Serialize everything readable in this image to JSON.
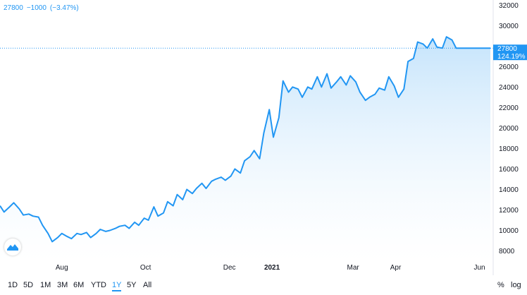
{
  "header": {
    "price": "27800",
    "change": "−1000",
    "change_pct": "(−3.47%)"
  },
  "price_tag": {
    "value": "27800",
    "pct": "124.19%"
  },
  "range_buttons": [
    {
      "label": "1D",
      "active": false
    },
    {
      "label": "5D",
      "active": false
    },
    {
      "label": "1M",
      "active": false
    },
    {
      "label": "3M",
      "active": false
    },
    {
      "label": "6M",
      "active": false
    },
    {
      "label": "YTD",
      "active": false
    },
    {
      "label": "1Y",
      "active": true
    },
    {
      "label": "5Y",
      "active": false
    },
    {
      "label": "All",
      "active": false
    }
  ],
  "axis_options": {
    "percent": "%",
    "log": "log"
  },
  "colors": {
    "line": "#2196f3",
    "fill_top": "#bfe1fb",
    "fill_bottom": "#ffffff",
    "tag_bg": "#2196f3"
  },
  "chart_data": {
    "type": "area",
    "title": "",
    "xlabel": "",
    "ylabel": "",
    "ylim": [
      7000,
      32500
    ],
    "yticks": [
      8000,
      10000,
      12000,
      14000,
      16000,
      18000,
      20000,
      22000,
      24000,
      26000,
      28000,
      30000,
      32000
    ],
    "xticks": [
      {
        "label": "Aug",
        "date": "2020-08-01"
      },
      {
        "label": "Oct",
        "date": "2020-10-01"
      },
      {
        "label": "Dec",
        "date": "2020-12-01"
      },
      {
        "label": "2021",
        "date": "2021-01-01",
        "bold": true
      },
      {
        "label": "Mar",
        "date": "2021-03-01"
      },
      {
        "label": "Apr",
        "date": "2021-04-01"
      },
      {
        "label": "Jun",
        "date": "2021-06-01"
      }
    ],
    "last_value": 27800,
    "series": [
      {
        "x": [
          "2020-06-17",
          "2020-06-20",
          "2020-06-24",
          "2020-06-27",
          "2020-07-01",
          "2020-07-04",
          "2020-07-08",
          "2020-07-11",
          "2020-07-15",
          "2020-07-18",
          "2020-07-22",
          "2020-07-25",
          "2020-07-29",
          "2020-08-01",
          "2020-08-05",
          "2020-08-08",
          "2020-08-12",
          "2020-08-15",
          "2020-08-19",
          "2020-08-22",
          "2020-08-26",
          "2020-08-29",
          "2020-09-02",
          "2020-09-05",
          "2020-09-09",
          "2020-09-12",
          "2020-09-16",
          "2020-09-19",
          "2020-09-23",
          "2020-09-26",
          "2020-09-30",
          "2020-10-03",
          "2020-10-07",
          "2020-10-10",
          "2020-10-14",
          "2020-10-17",
          "2020-10-21",
          "2020-10-24",
          "2020-10-28",
          "2020-10-31",
          "2020-11-04",
          "2020-11-07",
          "2020-11-11",
          "2020-11-14",
          "2020-11-18",
          "2020-11-21",
          "2020-11-25",
          "2020-11-28",
          "2020-12-02",
          "2020-12-05",
          "2020-12-09",
          "2020-12-12",
          "2020-12-16",
          "2020-12-19",
          "2020-12-23",
          "2020-12-26",
          "2020-12-30",
          "2021-01-02",
          "2021-01-06",
          "2021-01-09",
          "2021-01-13",
          "2021-01-16",
          "2021-01-20",
          "2021-01-23",
          "2021-01-27",
          "2021-01-30",
          "2021-02-03",
          "2021-02-06",
          "2021-02-10",
          "2021-02-13",
          "2021-02-17",
          "2021-02-20",
          "2021-02-24",
          "2021-02-27",
          "2021-03-03",
          "2021-03-06",
          "2021-03-10",
          "2021-03-13",
          "2021-03-17",
          "2021-03-20",
          "2021-03-24",
          "2021-03-27",
          "2021-03-31",
          "2021-04-03",
          "2021-04-07",
          "2021-04-10",
          "2021-04-14",
          "2021-04-17",
          "2021-04-21",
          "2021-04-24",
          "2021-04-28",
          "2021-05-01",
          "2021-05-05",
          "2021-05-08",
          "2021-05-12",
          "2021-05-15",
          "2021-05-19",
          "2021-05-22",
          "2021-05-26",
          "2021-05-29",
          "2021-06-02",
          "2021-06-05",
          "2021-06-09"
        ],
        "values": [
          12400,
          11800,
          12300,
          12700,
          12100,
          11500,
          11600,
          11400,
          11300,
          10500,
          9700,
          8900,
          9300,
          9700,
          9400,
          9200,
          9700,
          9600,
          9800,
          9300,
          9700,
          10100,
          9900,
          10000,
          10200,
          10400,
          10500,
          10200,
          10800,
          10500,
          11200,
          11000,
          12300,
          11400,
          11700,
          12800,
          12400,
          13500,
          13000,
          14000,
          13600,
          14100,
          14600,
          14100,
          14800,
          15000,
          15200,
          14900,
          15300,
          16000,
          15600,
          16800,
          17200,
          17800,
          17000,
          19500,
          21800,
          19100,
          21000,
          24600,
          23500,
          24000,
          23800,
          23000,
          24000,
          23800,
          25000,
          24000,
          25300,
          23900,
          24500,
          25000,
          24200,
          25100,
          24500,
          23500,
          22700,
          23000,
          23300,
          23900,
          23700,
          25000,
          24100,
          23000,
          23800,
          26500,
          26800,
          28400,
          28200,
          27800,
          28700,
          27900,
          27800,
          28900,
          28600,
          27800,
          27800,
          27800,
          27800,
          27800,
          27800,
          27800,
          27800
        ]
      }
    ]
  }
}
